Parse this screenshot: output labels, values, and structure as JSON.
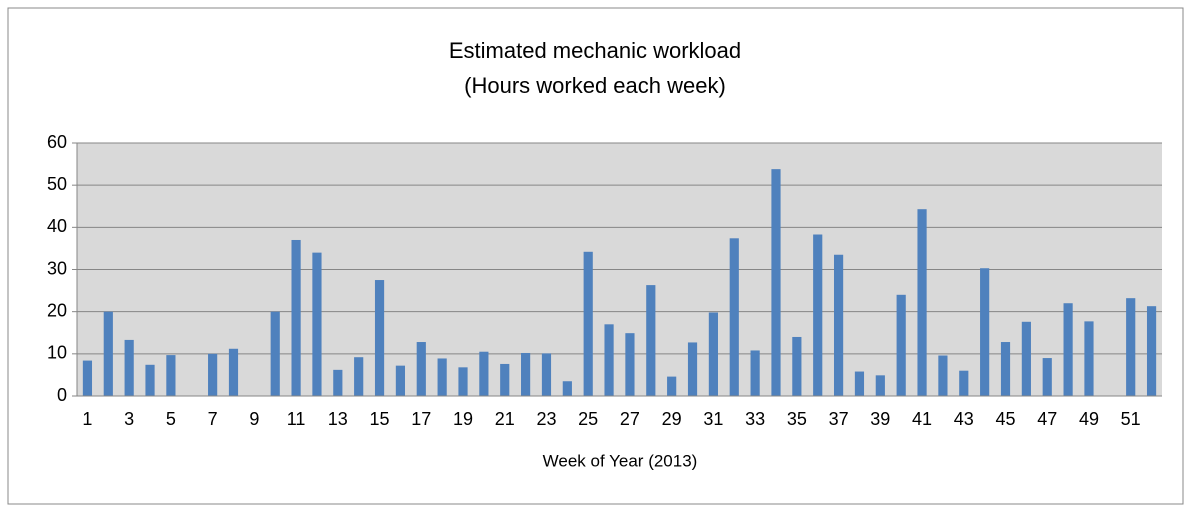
{
  "chart_data": {
    "type": "bar",
    "title": "Estimated mechanic workload",
    "subtitle": "(Hours worked each week)",
    "x_label": "Week of Year (2013)",
    "categories": [
      "1",
      null,
      "3",
      null,
      "5",
      null,
      "7",
      null,
      "9",
      null,
      "11",
      null,
      "13",
      null,
      "15",
      null,
      "17",
      null,
      "19",
      null,
      "21",
      null,
      "23",
      null,
      "25",
      null,
      "27",
      null,
      "29",
      null,
      "31",
      null,
      "33",
      null,
      "35",
      null,
      "37",
      null,
      "39",
      null,
      "41",
      null,
      "43",
      null,
      "45",
      null,
      "47",
      null,
      "49",
      null,
      "51",
      null
    ],
    "values": [
      8.4,
      20,
      13.3,
      7.4,
      9.7,
      0,
      10,
      11.2,
      0,
      20,
      37,
      34,
      6.2,
      9.2,
      27.5,
      7.2,
      12.8,
      8.9,
      6.8,
      10.5,
      7.6,
      10.2,
      10.1,
      3.5,
      34.2,
      17,
      14.9,
      26.3,
      4.6,
      12.7,
      19.8,
      37.4,
      10.8,
      53.8,
      14,
      38.3,
      33.5,
      5.8,
      4.9,
      24,
      44.3,
      9.6,
      6,
      30.3,
      12.8,
      17.6,
      9,
      22,
      17.7,
      0,
      23.2,
      21.3
    ],
    "color": "#4f81bd",
    "ylim": [
      0,
      60
    ],
    "yticks": [
      0,
      10,
      20,
      30,
      40,
      50,
      60
    ],
    "grid": true
  }
}
